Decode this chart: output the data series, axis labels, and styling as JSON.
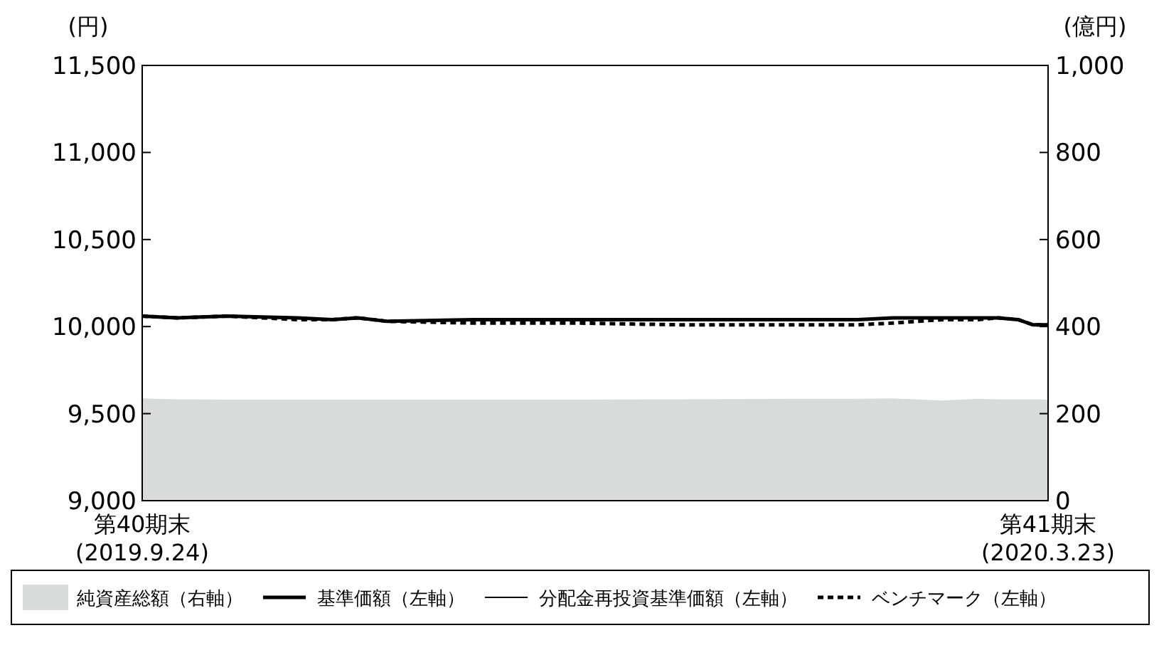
{
  "chart_data": {
    "type": "line",
    "ylabel": "(円)",
    "y2label": "(億円)",
    "x": [
      "2019-09-24",
      "2019-10-01",
      "2019-10-11",
      "2019-10-25",
      "2019-11-01",
      "2019-11-06",
      "2019-11-12",
      "2019-11-29",
      "2019-12-20",
      "2020-01-10",
      "2020-01-31",
      "2020-02-14",
      "2020-02-21",
      "2020-03-02",
      "2020-03-09",
      "2020-03-13",
      "2020-03-17",
      "2020-03-20",
      "2020-03-23"
    ],
    "xlim": [
      "2019-09-24",
      "2020-03-23"
    ],
    "xticks": [
      {
        "value": "2019-09-24",
        "label": "第40期末\n(2019.9.24)"
      },
      {
        "value": "2020-03-23",
        "label": "第41期末\n(2020.3.23)"
      }
    ],
    "ylim": [
      9000,
      11500
    ],
    "yticks": [
      {
        "value": 9000,
        "label": "9,000"
      },
      {
        "value": 9500,
        "label": "9,500"
      },
      {
        "value": 10000,
        "label": "10,000"
      },
      {
        "value": 10500,
        "label": "10,500"
      },
      {
        "value": 11000,
        "label": "11,000"
      },
      {
        "value": 11500,
        "label": "11,500"
      }
    ],
    "y2lim": [
      0,
      1000
    ],
    "y2ticks": [
      0,
      200,
      400,
      600,
      800,
      {
        "value": 1000,
        "label": "1,000"
      }
    ],
    "legend": "bottom",
    "series": [
      {
        "name": "純資産総額（右軸）",
        "type": "area",
        "axis": "y2",
        "color": "#d9dada",
        "values": [
          235,
          233,
          232,
          232,
          232,
          232,
          232,
          232,
          232,
          233,
          234,
          234,
          235,
          230,
          234,
          233,
          233,
          233,
          232
        ]
      },
      {
        "name": "基準価額（左軸）",
        "color": "#000000",
        "line_style": "solid",
        "values": [
          10060,
          10050,
          10060,
          10050,
          10040,
          10050,
          10030,
          10040,
          10040,
          10040,
          10040,
          10040,
          10050,
          10050,
          10050,
          10050,
          10040,
          10010,
          10010
        ]
      },
      {
        "name": "分配金再投資基準価額（左軸）",
        "color": "#000000",
        "line_style": "solid",
        "values": [
          null,
          null,
          null,
          null,
          null,
          null,
          null,
          null,
          null,
          null,
          null,
          null,
          null,
          null,
          null,
          null,
          null,
          null,
          null
        ]
      },
      {
        "name": "ベンチマーク（左軸）",
        "color": "#000000",
        "line_style": "dashed",
        "values": [
          10060,
          10050,
          10060,
          10040,
          10040,
          10050,
          10030,
          10020,
          10020,
          10010,
          10010,
          10010,
          10020,
          10040,
          10040,
          10050,
          10040,
          10010,
          10010
        ]
      }
    ]
  }
}
